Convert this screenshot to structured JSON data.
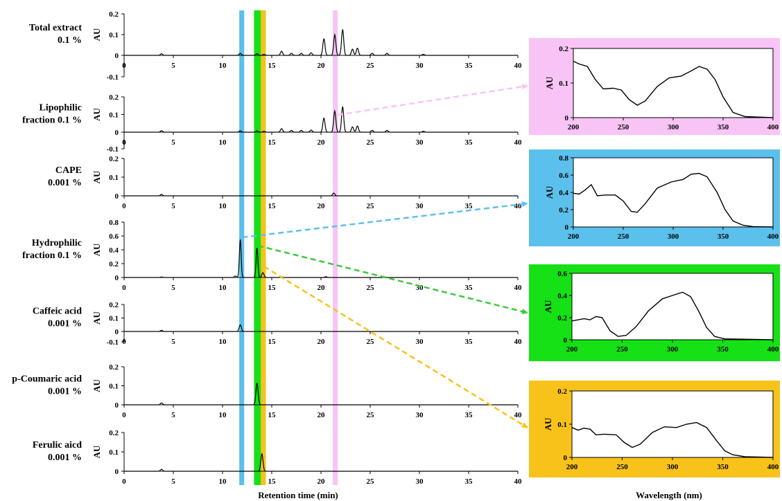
{
  "chart_data": [
    {
      "type": "line",
      "xlabel": "Retention time (min)",
      "x_ticks": [
        "0",
        "5",
        "10",
        "15",
        "20",
        "25",
        "30",
        "35",
        "40"
      ],
      "xlim": [
        0,
        40
      ],
      "highlight_bands": [
        {
          "color": "#5bc0ec",
          "x_range": [
            11.7,
            12.2
          ]
        },
        {
          "color": "#16e016",
          "x_range": [
            13.2,
            13.9
          ]
        },
        {
          "color": "#f7c21a",
          "x_range": [
            13.9,
            14.4
          ]
        },
        {
          "color": "#f8c4f5",
          "x_range": [
            21.2,
            21.7
          ]
        }
      ],
      "panels": [
        {
          "id": "total",
          "sample": [
            "Total extract",
            "0.1 %"
          ],
          "ylabel": "AU",
          "ylim": [
            -0.1,
            0.2
          ],
          "y_ticks": [
            "0.2",
            "0.1",
            "0",
            "-0.1"
          ],
          "peaks": [
            [
              3.8,
              0.008
            ],
            [
              11.8,
              0.01
            ],
            [
              13.5,
              0.008
            ],
            [
              14.2,
              0.005
            ],
            [
              16,
              0.02
            ],
            [
              17,
              0.01
            ],
            [
              18,
              0.01
            ],
            [
              19,
              0.012
            ],
            [
              20.3,
              0.08
            ],
            [
              21.4,
              0.1
            ],
            [
              22.2,
              0.125
            ],
            [
              23.2,
              0.03
            ],
            [
              23.7,
              0.035
            ],
            [
              25.2,
              0.01
            ],
            [
              26.7,
              0.01
            ],
            [
              30.4,
              0.005
            ]
          ]
        },
        {
          "id": "lipo",
          "sample": [
            "Lipophilic",
            "fraction  0.1 %"
          ],
          "ylabel": "AU",
          "ylim": [
            -0.1,
            0.2
          ],
          "y_ticks": [
            "0.2",
            "0.1",
            "0",
            "-0.1"
          ],
          "peaks": [
            [
              3.8,
              0.008
            ],
            [
              11.8,
              0.008
            ],
            [
              13.5,
              0.008
            ],
            [
              14.2,
              0.005
            ],
            [
              16,
              0.02
            ],
            [
              17,
              0.01
            ],
            [
              18,
              0.01
            ],
            [
              19,
              0.012
            ],
            [
              20.3,
              0.08
            ],
            [
              21.4,
              0.12
            ],
            [
              22.2,
              0.145
            ],
            [
              23.2,
              0.03
            ],
            [
              23.7,
              0.035
            ],
            [
              25.2,
              0.01
            ],
            [
              26.7,
              0.01
            ],
            [
              30.4,
              0.005
            ]
          ]
        },
        {
          "id": "cape",
          "sample": [
            "CAPE",
            "0.001 %"
          ],
          "ylabel": "AU",
          "ylim": [
            0,
            0.2
          ],
          "y_ticks": [
            "0.2",
            "0.1",
            "0"
          ],
          "peaks": [
            [
              3.8,
              0.008
            ],
            [
              21.3,
              0.015
            ]
          ]
        },
        {
          "id": "hydro",
          "sample": [
            "Hydrophilic",
            "fraction 0.1 %"
          ],
          "ylabel": "AU",
          "ylim": [
            0,
            0.8
          ],
          "y_ticks": [
            "0.8",
            "0.6",
            "0.4",
            "0.2",
            "0"
          ],
          "peaks": [
            [
              3.8,
              0.008
            ],
            [
              11.3,
              0.02
            ],
            [
              11.8,
              0.55
            ],
            [
              13.5,
              0.43
            ],
            [
              14.1,
              0.07
            ],
            [
              16,
              0.01
            ],
            [
              20.5,
              0.01
            ]
          ]
        },
        {
          "id": "caffeic",
          "sample": [
            "Caffeic acid",
            "0.001 %"
          ],
          "ylabel": "AU",
          "ylim": [
            -0.1,
            0.2
          ],
          "y_ticks": [
            "0.2",
            "0.1",
            "0",
            "-0.1"
          ],
          "peaks": [
            [
              3.8,
              0.008
            ],
            [
              11.8,
              0.05
            ]
          ]
        },
        {
          "id": "coumaric",
          "sample": [
            "p-Coumaric acid",
            "0.001 %"
          ],
          "ylabel": "AU",
          "ylim": [
            0,
            0.2
          ],
          "y_ticks": [
            "0.2",
            "0.1",
            "0"
          ],
          "peaks": [
            [
              3.8,
              0.01
            ],
            [
              13.5,
              0.115
            ]
          ]
        },
        {
          "id": "ferulic",
          "sample": [
            "Ferulic aicd",
            "0.001 %"
          ],
          "ylabel": "AU",
          "ylim": [
            0,
            0.2
          ],
          "y_ticks": [
            "0.2",
            "0.1",
            "0"
          ],
          "peaks": [
            [
              3.8,
              0.01
            ],
            [
              14.0,
              0.09
            ]
          ]
        }
      ]
    },
    {
      "type": "line",
      "xlabel": "Wavelength (nm)",
      "xlim": [
        200,
        400
      ],
      "x_ticks": [
        "200",
        "250",
        "300",
        "350",
        "400"
      ],
      "spectra": [
        {
          "id": "pink",
          "bg": "#f8c4f5",
          "ylabel": "AU",
          "ylim": [
            0,
            0.2
          ],
          "y_ticks": [
            "0.2",
            "0.1",
            "0"
          ],
          "points": [
            [
              200,
              0.163
            ],
            [
              206,
              0.155
            ],
            [
              214,
              0.148
            ],
            [
              222,
              0.11
            ],
            [
              230,
              0.083
            ],
            [
              240,
              0.085
            ],
            [
              248,
              0.08
            ],
            [
              256,
              0.052
            ],
            [
              264,
              0.036
            ],
            [
              272,
              0.048
            ],
            [
              284,
              0.09
            ],
            [
              296,
              0.115
            ],
            [
              308,
              0.12
            ],
            [
              318,
              0.135
            ],
            [
              326,
              0.148
            ],
            [
              334,
              0.14
            ],
            [
              342,
              0.11
            ],
            [
              350,
              0.06
            ],
            [
              360,
              0.015
            ],
            [
              372,
              0.003
            ],
            [
              400,
              0
            ]
          ]
        },
        {
          "id": "blue",
          "bg": "#5bc0ec",
          "ylabel": "AU",
          "ylim": [
            0,
            0.8
          ],
          "y_ticks": [
            "0.8",
            "0.6",
            "0.4",
            "0.2",
            "0"
          ],
          "points": [
            [
              200,
              0.39
            ],
            [
              206,
              0.38
            ],
            [
              212,
              0.43
            ],
            [
              218,
              0.49
            ],
            [
              224,
              0.36
            ],
            [
              232,
              0.37
            ],
            [
              242,
              0.37
            ],
            [
              250,
              0.3
            ],
            [
              258,
              0.18
            ],
            [
              264,
              0.17
            ],
            [
              272,
              0.27
            ],
            [
              284,
              0.45
            ],
            [
              298,
              0.52
            ],
            [
              310,
              0.55
            ],
            [
              318,
              0.61
            ],
            [
              326,
              0.62
            ],
            [
              334,
              0.58
            ],
            [
              344,
              0.4
            ],
            [
              352,
              0.2
            ],
            [
              360,
              0.07
            ],
            [
              370,
              0.02
            ],
            [
              380,
              0.005
            ],
            [
              400,
              0
            ]
          ]
        },
        {
          "id": "green",
          "bg": "#16e016",
          "ylabel": "AU",
          "ylim": [
            0,
            0.6
          ],
          "y_ticks": [
            "0.6",
            "0.4",
            "0.2",
            "0"
          ],
          "points": [
            [
              200,
              0.17
            ],
            [
              206,
              0.18
            ],
            [
              212,
              0.19
            ],
            [
              218,
              0.18
            ],
            [
              224,
              0.21
            ],
            [
              230,
              0.2
            ],
            [
              238,
              0.08
            ],
            [
              246,
              0.03
            ],
            [
              254,
              0.04
            ],
            [
              264,
              0.12
            ],
            [
              276,
              0.26
            ],
            [
              290,
              0.37
            ],
            [
              300,
              0.4
            ],
            [
              310,
              0.43
            ],
            [
              318,
              0.39
            ],
            [
              326,
              0.26
            ],
            [
              334,
              0.11
            ],
            [
              342,
              0.03
            ],
            [
              352,
              0.008
            ],
            [
              400,
              0
            ]
          ]
        },
        {
          "id": "yellow",
          "bg": "#f7c21a",
          "ylabel": "AU",
          "ylim": [
            0,
            0.2
          ],
          "y_ticks": [
            "0.2",
            "0.1",
            "0"
          ],
          "points": [
            [
              200,
              0.09
            ],
            [
              206,
              0.082
            ],
            [
              212,
              0.088
            ],
            [
              218,
              0.085
            ],
            [
              224,
              0.068
            ],
            [
              232,
              0.07
            ],
            [
              244,
              0.068
            ],
            [
              252,
              0.045
            ],
            [
              260,
              0.03
            ],
            [
              268,
              0.04
            ],
            [
              280,
              0.075
            ],
            [
              292,
              0.092
            ],
            [
              304,
              0.09
            ],
            [
              314,
              0.1
            ],
            [
              324,
              0.105
            ],
            [
              334,
              0.09
            ],
            [
              344,
              0.05
            ],
            [
              352,
              0.02
            ],
            [
              360,
              0.008
            ],
            [
              372,
              0.002
            ],
            [
              400,
              0
            ]
          ]
        }
      ]
    }
  ]
}
